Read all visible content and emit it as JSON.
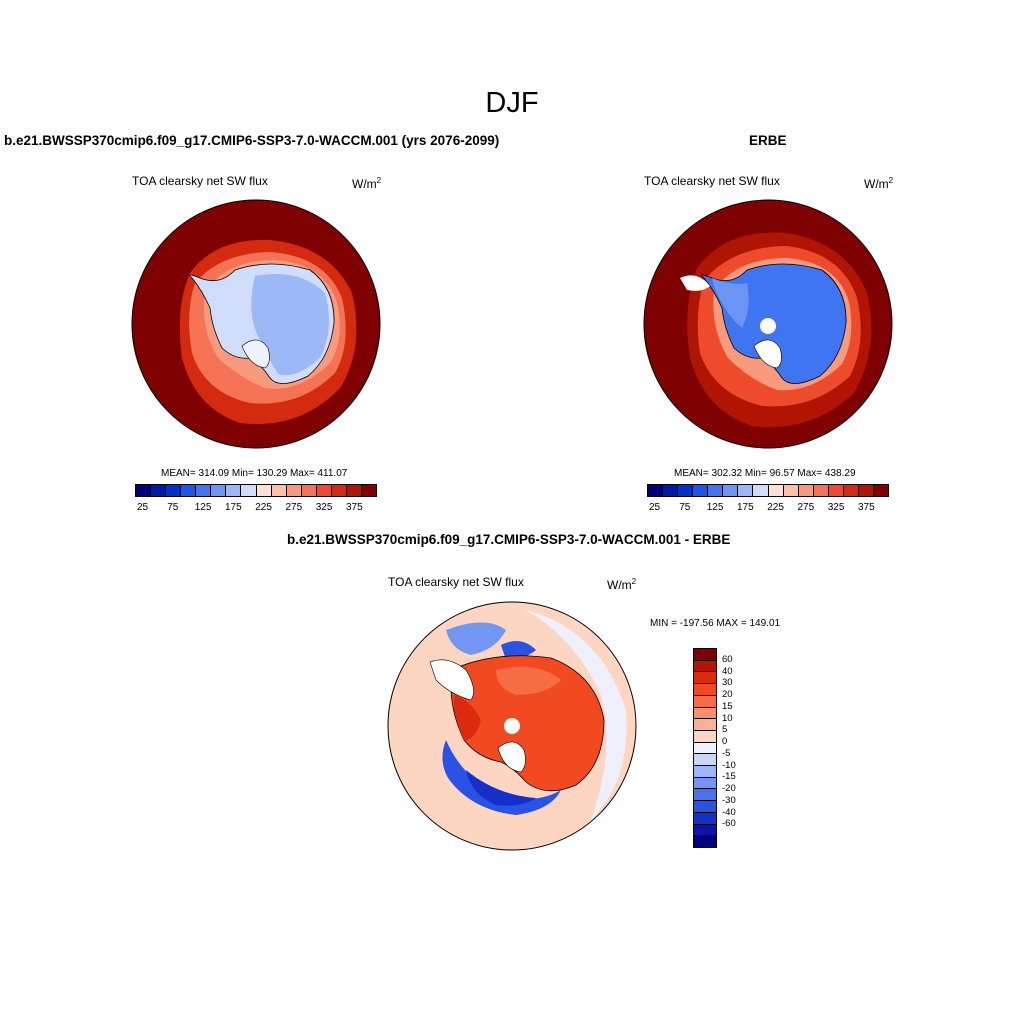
{
  "title": "DJF",
  "panels": {
    "model": {
      "title": "b.e21.BWSSP370cmip6.f09_g17.CMIP6-SSP3-7.0-WACCM.001 (yrs 2076-2099)",
      "var_label": "TOA clearsky net SW flux",
      "unit": "W/m",
      "unit_exp": "2",
      "stats": "MEAN= 314.09  Min= 130.29  Max= 411.07"
    },
    "obs": {
      "title": "ERBE",
      "var_label": "TOA clearsky net SW flux",
      "unit": "W/m",
      "unit_exp": "2",
      "stats": "MEAN= 302.32  Min=  96.57  Max= 438.29"
    },
    "diff": {
      "title": "b.e21.BWSSP370cmip6.f09_g17.CMIP6-SSP3-7.0-WACCM.001 - ERBE",
      "var_label": "TOA clearsky net SW flux",
      "unit": "W/m",
      "unit_exp": "2",
      "stats": "MIN = -197.56 MAX = 149.01"
    }
  },
  "colorbar_abs": {
    "colors": [
      "#00007f",
      "#001aa6",
      "#0033cc",
      "#1f55e6",
      "#3f75f0",
      "#6a95f4",
      "#9db8f7",
      "#cfddfb",
      "#fde2d2",
      "#fbc0a6",
      "#f99a7c",
      "#f57355",
      "#ee4b2c",
      "#d42a10",
      "#b01503",
      "#7f0000"
    ],
    "tick_labels": [
      "25",
      "75",
      "125",
      "175",
      "225",
      "275",
      "325",
      "375"
    ]
  },
  "colorbar_diff": {
    "colors": [
      "#7f0000",
      "#b51404",
      "#dc2a0f",
      "#f24a20",
      "#f56d45",
      "#f8906d",
      "#fbb294",
      "#fdd6c2",
      "#eef1fb",
      "#c8d7fa",
      "#9db8f7",
      "#7297f3",
      "#4a72ee",
      "#2a52e4",
      "#1530c8",
      "#0a14a8",
      "#00007f"
    ],
    "tick_labels": [
      "60",
      "40",
      "30",
      "20",
      "15",
      "10",
      "5",
      "0",
      "-5",
      "-10",
      "-15",
      "-20",
      "-30",
      "-40",
      "-60"
    ]
  }
}
